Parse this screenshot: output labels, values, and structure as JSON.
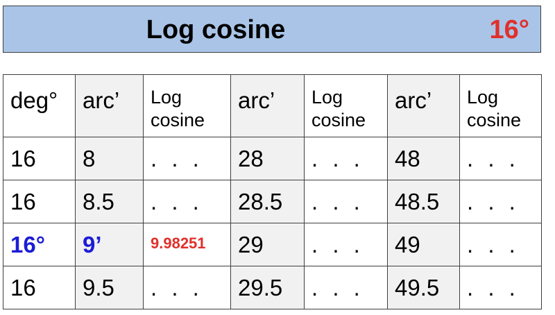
{
  "banner": {
    "title": "Log cosine",
    "degree": "16°"
  },
  "table": {
    "headers": [
      "deg°",
      "arc’",
      "Log\ncosine",
      "arc’",
      "Log\ncosine",
      "arc’",
      "Log\ncosine"
    ],
    "rows": [
      [
        "16",
        "8",
        ". . .",
        "28",
        ". . .",
        "48",
        ". . ."
      ],
      [
        "16",
        "8.5",
        ". . .",
        "28.5",
        ". . .",
        "48.5",
        ". . ."
      ],
      [
        "16°",
        "9’",
        "9.98251",
        "29",
        ". . .",
        "49",
        ". . ."
      ],
      [
        "16",
        "9.5",
        ". . .",
        "29.5",
        ". . .",
        "49.5",
        ". . ."
      ]
    ]
  },
  "colors": {
    "banner_bg": "#a9c4e7",
    "highlight_blue": "#1c1cd6",
    "highlight_red": "#e0302a"
  }
}
